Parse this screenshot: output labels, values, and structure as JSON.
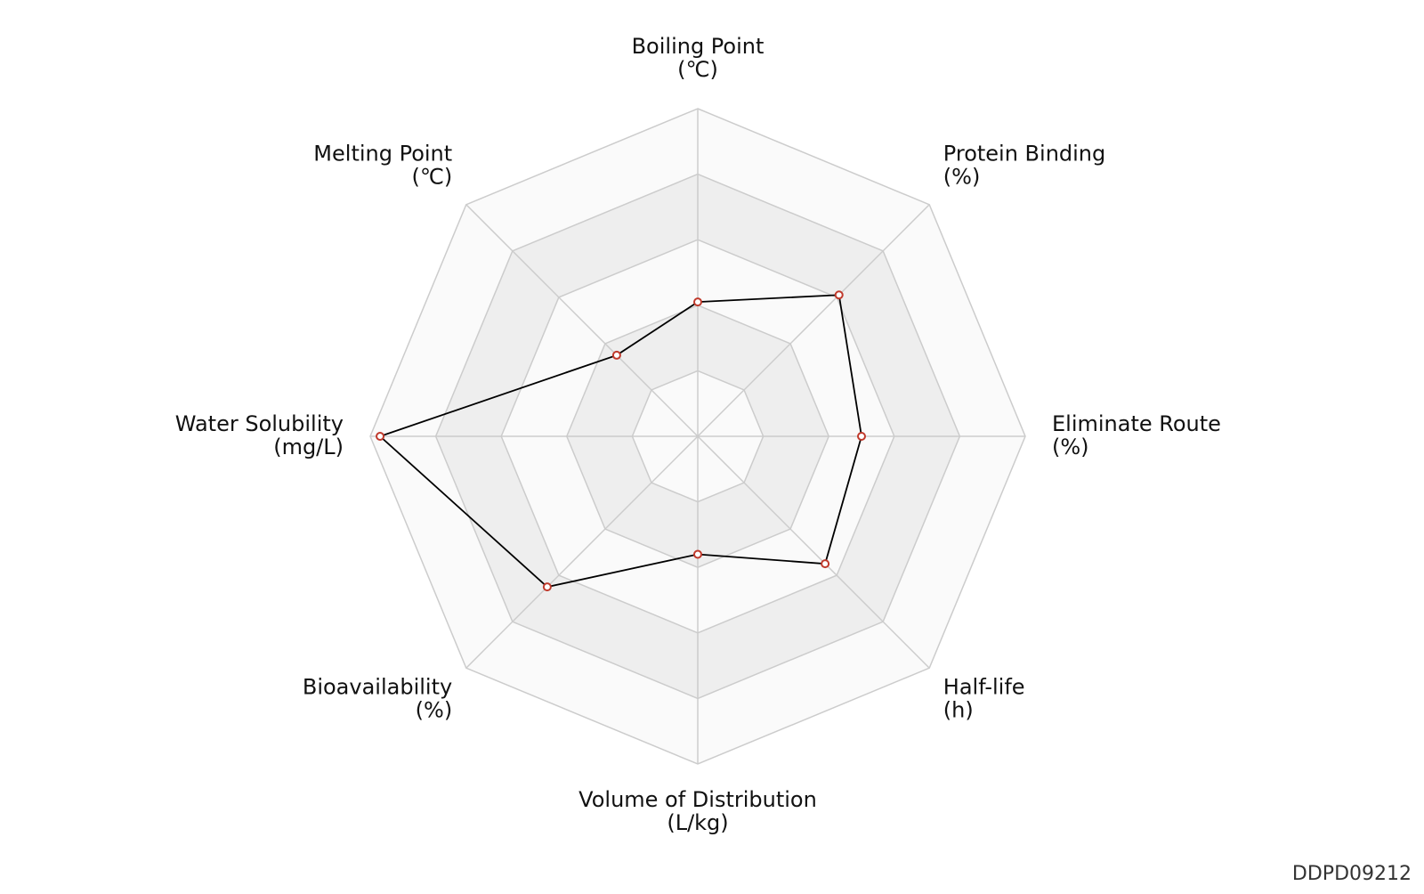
{
  "chart_data": {
    "type": "radar",
    "axes": [
      {
        "name": "Boiling Point",
        "unit": "(℃)"
      },
      {
        "name": "Protein Binding",
        "unit": "(%)"
      },
      {
        "name": "Eliminate Route",
        "unit": "(%)"
      },
      {
        "name": "Half-life",
        "unit": "(h)"
      },
      {
        "name": "Volume of Distribution",
        "unit": "(L/kg)"
      },
      {
        "name": "Bioavailability",
        "unit": "(%)"
      },
      {
        "name": "Water Solubility",
        "unit": "(mg/L)"
      },
      {
        "name": "Melting Point",
        "unit": "(℃)"
      }
    ],
    "rings": 5,
    "range": [
      0,
      1
    ],
    "series": [
      {
        "values": [
          0.41,
          0.61,
          0.5,
          0.55,
          0.36,
          0.65,
          0.97,
          0.35
        ]
      }
    ],
    "colors": {
      "line": "#000000",
      "marker_stroke": "#c0392b",
      "marker_fill": "#ffffff",
      "grid": "#cccccc",
      "band_shaded": "#eeeeee",
      "band_light": "#fafafa"
    }
  },
  "watermark": "DDPD09212"
}
